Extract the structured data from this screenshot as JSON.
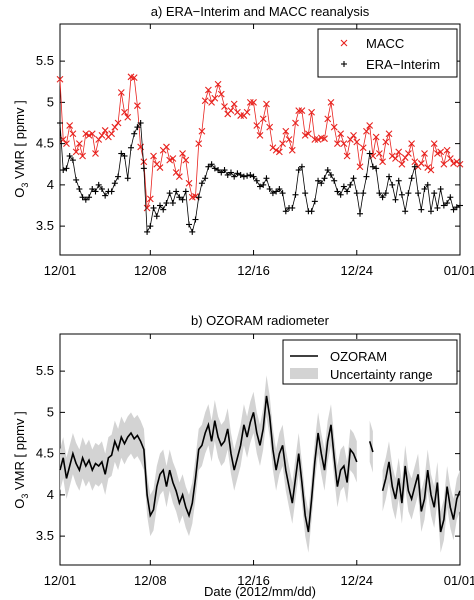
{
  "chart_data": [
    {
      "type": "line",
      "title": "a)  ERA−Interim and MACC reanalysis",
      "ylabel_main": "O",
      "ylabel_sub": "3",
      "ylabel_rest": " VMR  [ ppmv ]",
      "xlabel": "",
      "x_ticks": [
        "12/01",
        "12/08",
        "12/16",
        "12/24",
        "01/01"
      ],
      "x_tick_days": [
        1,
        8,
        16,
        24,
        32
      ],
      "xlim_days": [
        1,
        32
      ],
      "y_ticks": [
        "3.5",
        "4",
        "4.5",
        "5",
        "5.5"
      ],
      "y_tick_values": [
        3.5,
        4,
        4.5,
        5,
        5.5
      ],
      "ylim": [
        3.15,
        5.95
      ],
      "grid": false,
      "legend_position": "top-right",
      "series": [
        {
          "name": "MACC",
          "marker": "x",
          "color": "#e8231f",
          "x_days": [
            1.0,
            1.25,
            1.5,
            1.75,
            2.0,
            2.25,
            2.5,
            2.75,
            3.0,
            3.25,
            3.5,
            3.75,
            4.0,
            4.25,
            4.5,
            4.75,
            5.0,
            5.25,
            5.5,
            5.75,
            6.0,
            6.25,
            6.5,
            6.75,
            7.0,
            7.25,
            7.5,
            7.75,
            8.0,
            8.25,
            8.5,
            8.75,
            9.0,
            9.25,
            9.5,
            9.75,
            10.0,
            10.25,
            10.5,
            10.75,
            11.0,
            11.25,
            11.5,
            11.75,
            12.0,
            12.25,
            12.5,
            12.75,
            13.0,
            13.25,
            13.5,
            13.75,
            14.0,
            14.25,
            14.5,
            14.75,
            15.0,
            15.25,
            15.5,
            15.75,
            16.0,
            16.25,
            16.5,
            16.75,
            17.0,
            17.25,
            17.5,
            17.75,
            18.0,
            18.25,
            18.5,
            18.75,
            19.0,
            19.25,
            19.5,
            19.75,
            20.0,
            20.25,
            20.5,
            20.75,
            21.0,
            21.25,
            21.5,
            21.75,
            22.0,
            22.25,
            22.5,
            22.75,
            23.0,
            23.25,
            23.5,
            23.75,
            24.0,
            24.25,
            24.5,
            24.75,
            25.0,
            25.25,
            25.5,
            25.75,
            26.0,
            26.25,
            26.5,
            26.75,
            27.0,
            27.25,
            27.5,
            27.75,
            28.0,
            28.25,
            28.5,
            28.75,
            29.0,
            29.25,
            29.5,
            29.75,
            30.0,
            30.25,
            30.5,
            30.75,
            31.0,
            31.25,
            31.5,
            31.75,
            32.0
          ],
          "values": [
            5.28,
            4.55,
            4.5,
            4.72,
            4.62,
            4.4,
            4.5,
            4.35,
            4.62,
            4.6,
            4.62,
            4.38,
            4.55,
            4.6,
            4.66,
            4.58,
            4.62,
            4.7,
            4.75,
            5.12,
            4.88,
            4.82,
            5.31,
            5.3,
            4.96,
            4.46,
            4.28,
            3.72,
            3.83,
            4.35,
            4.25,
            4.21,
            4.42,
            4.46,
            4.3,
            4.32,
            4.15,
            4.1,
            4.38,
            4.3,
            4.02,
            3.85,
            3.86,
            4.5,
            4.65,
            5.02,
            5.15,
            5.0,
            5.05,
            5.22,
            5.1,
            4.95,
            4.86,
            4.9,
            4.98,
            4.88,
            4.84,
            4.84,
            4.88,
            5.0,
            5.0,
            4.72,
            4.6,
            4.8,
            4.98,
            4.7,
            4.45,
            4.42,
            4.4,
            4.5,
            4.65,
            4.55,
            4.42,
            4.75,
            4.9,
            4.9,
            4.6,
            4.62,
            4.88,
            4.55,
            4.55,
            4.57,
            4.56,
            4.8,
            5.0,
            4.7,
            4.5,
            4.62,
            4.5,
            4.35,
            4.55,
            4.6,
            4.52,
            4.22,
            4.45,
            4.65,
            4.72,
            4.35,
            4.58,
            4.38,
            4.28,
            4.52,
            4.62,
            4.35,
            4.32,
            4.4,
            4.25,
            4.33,
            4.38,
            4.5,
            4.28,
            4.22,
            4.26,
            4.38,
            4.21,
            4.18,
            4.5,
            4.38,
            4.4,
            4.25,
            4.42,
            4.32,
            4.26,
            4.28,
            4.25
          ]
        },
        {
          "name": "ERA−Interim",
          "marker": "+",
          "color": "#000000",
          "x_days": [
            1.0,
            1.25,
            1.5,
            1.75,
            2.0,
            2.25,
            2.5,
            2.75,
            3.0,
            3.25,
            3.5,
            3.75,
            4.0,
            4.25,
            4.5,
            4.75,
            5.0,
            5.25,
            5.5,
            5.75,
            6.0,
            6.25,
            6.5,
            6.75,
            7.0,
            7.25,
            7.5,
            7.75,
            8.0,
            8.25,
            8.5,
            8.75,
            9.0,
            9.25,
            9.5,
            9.75,
            10.0,
            10.25,
            10.5,
            10.75,
            11.0,
            11.25,
            11.5,
            11.75,
            12.0,
            12.25,
            12.5,
            12.75,
            13.0,
            13.25,
            13.5,
            13.75,
            14.0,
            14.25,
            14.5,
            14.75,
            15.0,
            15.25,
            15.5,
            15.75,
            16.0,
            16.25,
            16.5,
            16.75,
            17.0,
            17.25,
            17.5,
            17.75,
            18.0,
            18.25,
            18.5,
            18.75,
            19.0,
            19.25,
            19.5,
            19.75,
            20.0,
            20.25,
            20.5,
            20.75,
            21.0,
            21.25,
            21.5,
            21.75,
            22.0,
            22.25,
            22.5,
            22.75,
            23.0,
            23.25,
            23.5,
            23.75,
            24.0,
            24.25,
            24.5,
            24.75,
            25.0,
            25.25,
            25.5,
            25.75,
            26.0,
            26.25,
            26.5,
            26.75,
            27.0,
            27.25,
            27.5,
            27.75,
            28.0,
            28.25,
            28.5,
            28.75,
            29.0,
            29.25,
            29.5,
            29.75,
            30.0,
            30.25,
            30.5,
            30.75,
            31.0,
            31.25,
            31.5,
            31.75,
            32.0
          ],
          "values": [
            4.75,
            4.18,
            4.2,
            4.35,
            4.3,
            4.06,
            3.95,
            3.85,
            3.82,
            3.85,
            3.95,
            3.92,
            4.0,
            3.95,
            3.87,
            3.92,
            3.92,
            4.02,
            4.1,
            4.38,
            4.35,
            4.08,
            4.45,
            4.62,
            4.7,
            4.75,
            4.2,
            3.43,
            3.5,
            3.72,
            3.62,
            3.75,
            3.7,
            3.78,
            3.9,
            3.78,
            3.92,
            3.85,
            3.82,
            3.92,
            3.52,
            3.43,
            3.58,
            3.85,
            4.02,
            4.08,
            4.22,
            4.25,
            4.2,
            4.18,
            4.15,
            4.18,
            4.12,
            4.15,
            4.1,
            4.14,
            4.12,
            4.1,
            4.11,
            4.12,
            4.1,
            4.05,
            3.98,
            4.0,
            4.08,
            3.95,
            3.9,
            3.92,
            3.95,
            3.9,
            3.68,
            3.72,
            3.72,
            3.88,
            4.18,
            4.22,
            3.9,
            3.68,
            3.68,
            3.8,
            4.05,
            4.02,
            4.08,
            4.18,
            4.12,
            4.05,
            3.92,
            3.88,
            3.98,
            3.92,
            4.0,
            4.08,
            3.9,
            3.65,
            3.9,
            4.1,
            4.38,
            4.22,
            4.2,
            3.9,
            3.85,
            3.9,
            4.1,
            4.0,
            3.82,
            4.05,
            3.88,
            3.68,
            3.9,
            4.08,
            4.22,
            3.9,
            3.7,
            3.95,
            4.0,
            3.68,
            3.9,
            3.72,
            3.95,
            3.75,
            3.78,
            3.85,
            3.7,
            3.73,
            3.75
          ]
        }
      ]
    },
    {
      "type": "line",
      "title": "b)  OZORAM radiometer",
      "ylabel_main": "O",
      "ylabel_sub": "3",
      "ylabel_rest": " VMR  [ ppmv ]",
      "xlabel": "Date (2012/mm/dd)",
      "x_ticks": [
        "12/01",
        "12/08",
        "12/16",
        "12/24",
        "01/01"
      ],
      "x_tick_days": [
        1,
        8,
        16,
        24,
        32
      ],
      "xlim_days": [
        1,
        32
      ],
      "y_ticks": [
        "3.5",
        "4",
        "4.5",
        "5",
        "5.5"
      ],
      "y_tick_values": [
        3.5,
        4,
        4.5,
        5,
        5.5
      ],
      "ylim": [
        3.15,
        5.95
      ],
      "grid": false,
      "legend_position": "top-right",
      "series": [
        {
          "name": "OZORAM",
          "color": "#000000",
          "x_days": [
            1.0,
            1.25,
            1.5,
            1.75,
            2.0,
            2.25,
            2.5,
            2.75,
            3.0,
            3.25,
            3.5,
            3.75,
            4.0,
            4.25,
            4.5,
            4.75,
            5.0,
            5.25,
            5.5,
            5.75,
            6.0,
            6.25,
            6.5,
            6.75,
            7.0,
            7.25,
            7.5,
            7.75,
            8.0,
            8.25,
            8.5,
            8.75,
            9.0,
            9.25,
            9.5,
            9.75,
            10.0,
            10.25,
            10.5,
            10.75,
            11.0,
            11.25,
            11.5,
            11.75,
            12.0,
            12.25,
            12.5,
            12.75,
            13.0,
            13.25,
            13.5,
            13.75,
            14.0,
            14.25,
            14.5,
            14.75,
            15.0,
            15.25,
            15.5,
            15.75,
            16.0,
            16.25,
            16.5,
            16.75,
            17.0,
            17.25,
            17.5,
            17.75,
            18.0,
            18.25,
            18.5,
            18.75,
            19.0,
            19.25,
            19.5,
            19.75,
            20.0,
            20.25,
            20.5,
            20.75,
            21.0,
            21.25,
            21.5,
            21.75,
            22.0,
            22.25,
            22.5,
            22.75,
            23.0,
            23.25,
            23.5,
            23.75,
            24.0,
            24.25,
            24.5,
            24.75,
            25.0,
            25.25,
            25.5,
            25.75,
            26.0,
            26.25,
            26.5,
            26.75,
            27.0,
            27.25,
            27.5,
            27.75,
            28.0,
            28.25,
            28.5,
            28.75,
            29.0,
            29.25,
            29.5,
            29.75,
            30.0,
            30.25,
            30.5,
            30.75,
            31.0,
            31.25,
            31.5,
            31.75,
            32.0
          ],
          "values": [
            4.3,
            4.45,
            4.2,
            4.35,
            4.5,
            4.38,
            4.3,
            4.45,
            4.35,
            4.42,
            4.3,
            4.38,
            4.35,
            4.4,
            4.25,
            4.45,
            4.48,
            4.65,
            4.55,
            4.7,
            4.62,
            4.7,
            4.75,
            4.68,
            4.72,
            4.65,
            4.55,
            4.0,
            3.75,
            3.82,
            4.1,
            4.25,
            4.3,
            4.1,
            4.3,
            4.15,
            4.05,
            3.9,
            4.0,
            3.85,
            3.75,
            3.9,
            4.2,
            4.55,
            4.6,
            4.75,
            4.85,
            4.65,
            4.9,
            4.7,
            4.6,
            4.65,
            4.8,
            4.5,
            4.3,
            4.45,
            4.6,
            4.85,
            4.7,
            4.88,
            5.0,
            4.75,
            4.6,
            4.8,
            5.2,
            4.95,
            4.55,
            4.3,
            4.5,
            4.6,
            4.3,
            4.1,
            3.9,
            4.2,
            4.5,
            4.15,
            3.75,
            3.55,
            3.95,
            4.4,
            4.75,
            4.5,
            4.3,
            4.65,
            4.85,
            4.45,
            4.1,
            4.3,
            4.35,
            4.15,
            4.55,
            4.5,
            4.4,
            null,
            null,
            null,
            4.65,
            4.52,
            null,
            null,
            4.05,
            4.2,
            4.4,
            4.1,
            3.95,
            4.2,
            3.9,
            4.35,
            4.05,
            3.95,
            4.1,
            4.25,
            3.8,
            3.95,
            4.3,
            4.0,
            3.85,
            4.15,
            3.55,
            3.7,
            4.1,
            3.85,
            3.7,
            3.95,
            4.05
          ]
        },
        {
          "name": "Uncertainty range",
          "color": "#d3d3d3",
          "band_halfwidth": 0.25
        }
      ]
    }
  ]
}
